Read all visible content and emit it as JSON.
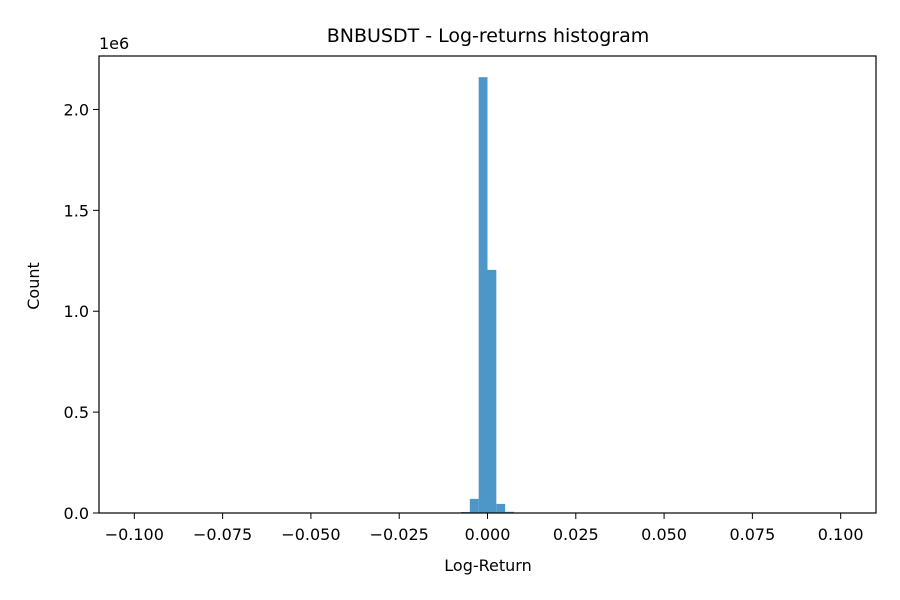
{
  "chart_data": {
    "type": "bar",
    "title": "BNBUSDT - Log-returns histogram",
    "xlabel": "Log-Return",
    "ylabel": "Count",
    "y_multiplier_label": "1e6",
    "y_multiplier": 1000000,
    "xlim": [
      -0.11,
      0.11
    ],
    "ylim": [
      0,
      2265000
    ],
    "x_ticks": [
      -0.1,
      -0.075,
      -0.05,
      -0.025,
      0.0,
      0.025,
      0.05,
      0.075,
      0.1
    ],
    "x_tick_labels": [
      "−0.100",
      "−0.075",
      "−0.050",
      "−0.025",
      "0.000",
      "0.025",
      "0.050",
      "0.075",
      "0.100"
    ],
    "y_ticks": [
      0,
      500000,
      1000000,
      1500000,
      2000000
    ],
    "y_tick_labels": [
      "0.0",
      "0.5",
      "1.0",
      "1.5",
      "2.0"
    ],
    "bar_color": "#4c96c8",
    "bins": [
      {
        "x0": -0.0075,
        "x1": -0.005,
        "count": 5000
      },
      {
        "x0": -0.005,
        "x1": -0.0025,
        "count": 70000
      },
      {
        "x0": -0.0025,
        "x1": 0.0,
        "count": 2160000
      },
      {
        "x0": 0.0,
        "x1": 0.0025,
        "count": 1205000
      },
      {
        "x0": 0.0025,
        "x1": 0.005,
        "count": 45000
      },
      {
        "x0": 0.005,
        "x1": 0.0075,
        "count": 6000
      },
      {
        "x0": 0.0075,
        "x1": 0.01,
        "count": 1500
      }
    ],
    "grid": false,
    "legend": "none"
  }
}
